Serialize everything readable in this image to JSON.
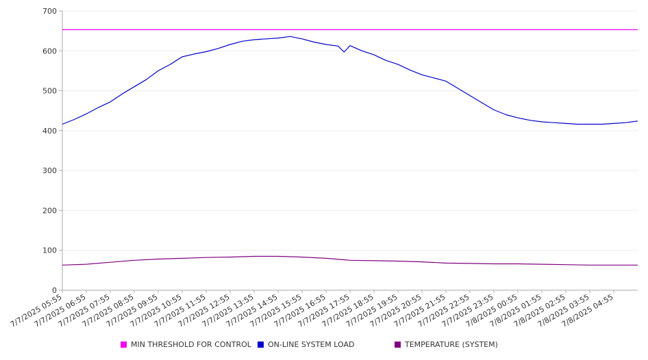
{
  "chart_data": {
    "type": "line",
    "title": "",
    "xlabel": "",
    "ylabel": "",
    "ylim": [
      0,
      700
    ],
    "y_ticks": [
      0,
      100,
      200,
      300,
      400,
      500,
      600,
      700
    ],
    "grid": "horizontal",
    "legend_position": "bottom",
    "x_tick_labels": [
      "7/7/2025 05:55",
      "7/7/2025 06:55",
      "7/7/2025 07:55",
      "7/7/2025 08:55",
      "7/7/2025 09:55",
      "7/7/2025 10:55",
      "7/7/2025 11:55",
      "7/7/2025 12:55",
      "7/7/2025 13:55",
      "7/7/2025 14:55",
      "7/7/2025 15:55",
      "7/7/2025 16:55",
      "7/7/2025 17:55",
      "7/7/2025 18:55",
      "7/7/2025 19:55",
      "7/7/2025 20:55",
      "7/7/2025 21:55",
      "7/7/2025 22:55",
      "7/7/2025 23:55",
      "7/8/2025 00:55",
      "7/8/2025 01:55",
      "7/8/2025 02:55",
      "7/8/2025 03:55",
      "7/8/2025 04:55"
    ],
    "series": [
      {
        "name": "MIN THRESHOLD FOR CONTROL",
        "color": "#ee00ee",
        "x": [
          "7/7/2025 05:55",
          "7/8/2025 05:55"
        ],
        "values": [
          653,
          653
        ]
      },
      {
        "name": "ON-LINE SYSTEM LOAD",
        "color": "#0000cc",
        "x": [
          "7/7/2025 05:55",
          "7/7/2025 06:25",
          "7/7/2025 06:55",
          "7/7/2025 07:25",
          "7/7/2025 07:55",
          "7/7/2025 08:25",
          "7/7/2025 08:55",
          "7/7/2025 09:25",
          "7/7/2025 09:55",
          "7/7/2025 10:25",
          "7/7/2025 10:55",
          "7/7/2025 11:25",
          "7/7/2025 11:55",
          "7/7/2025 12:25",
          "7/7/2025 12:55",
          "7/7/2025 13:25",
          "7/7/2025 13:55",
          "7/7/2025 14:25",
          "7/7/2025 14:55",
          "7/7/2025 15:25",
          "7/7/2025 15:55",
          "7/7/2025 16:25",
          "7/7/2025 16:55",
          "7/7/2025 17:25",
          "7/7/2025 17:40",
          "7/7/2025 17:55",
          "7/7/2025 18:25",
          "7/7/2025 18:55",
          "7/7/2025 19:25",
          "7/7/2025 19:55",
          "7/7/2025 20:25",
          "7/7/2025 20:55",
          "7/7/2025 21:25",
          "7/7/2025 21:55",
          "7/7/2025 22:25",
          "7/7/2025 22:55",
          "7/7/2025 23:25",
          "7/7/2025 23:55",
          "7/8/2025 00:25",
          "7/8/2025 00:55",
          "7/8/2025 01:25",
          "7/8/2025 01:55",
          "7/8/2025 02:25",
          "7/8/2025 02:55",
          "7/8/2025 03:25",
          "7/8/2025 03:55",
          "7/8/2025 04:25",
          "7/8/2025 04:55",
          "7/8/2025 05:25",
          "7/8/2025 05:55"
        ],
        "values": [
          416,
          428,
          442,
          458,
          472,
          492,
          510,
          528,
          550,
          566,
          585,
          592,
          598,
          606,
          616,
          624,
          628,
          630,
          632,
          636,
          630,
          622,
          616,
          612,
          597,
          613,
          600,
          590,
          576,
          566,
          552,
          540,
          532,
          524,
          506,
          488,
          470,
          452,
          440,
          432,
          426,
          422,
          420,
          418,
          416,
          416,
          416,
          418,
          420,
          424
        ]
      },
      {
        "name": "TEMPERATURE (SYSTEM)",
        "color": "#7f0080",
        "x": [
          "7/7/2025 05:55",
          "7/7/2025 06:55",
          "7/7/2025 07:55",
          "7/7/2025 08:55",
          "7/7/2025 09:55",
          "7/7/2025 10:55",
          "7/7/2025 11:55",
          "7/7/2025 12:55",
          "7/7/2025 13:55",
          "7/7/2025 14:55",
          "7/7/2025 15:55",
          "7/7/2025 16:55",
          "7/7/2025 17:55",
          "7/7/2025 18:55",
          "7/7/2025 19:55",
          "7/7/2025 20:55",
          "7/7/2025 21:55",
          "7/7/2025 22:55",
          "7/7/2025 23:55",
          "7/8/2025 00:55",
          "7/8/2025 01:55",
          "7/8/2025 02:55",
          "7/8/2025 03:55",
          "7/8/2025 04:55",
          "7/8/2025 05:55"
        ],
        "values": [
          63,
          65,
          70,
          75,
          78,
          80,
          82,
          83,
          85,
          85,
          83,
          80,
          75,
          74,
          73,
          71,
          68,
          67,
          66,
          66,
          65,
          64,
          63,
          63,
          63
        ]
      }
    ]
  }
}
